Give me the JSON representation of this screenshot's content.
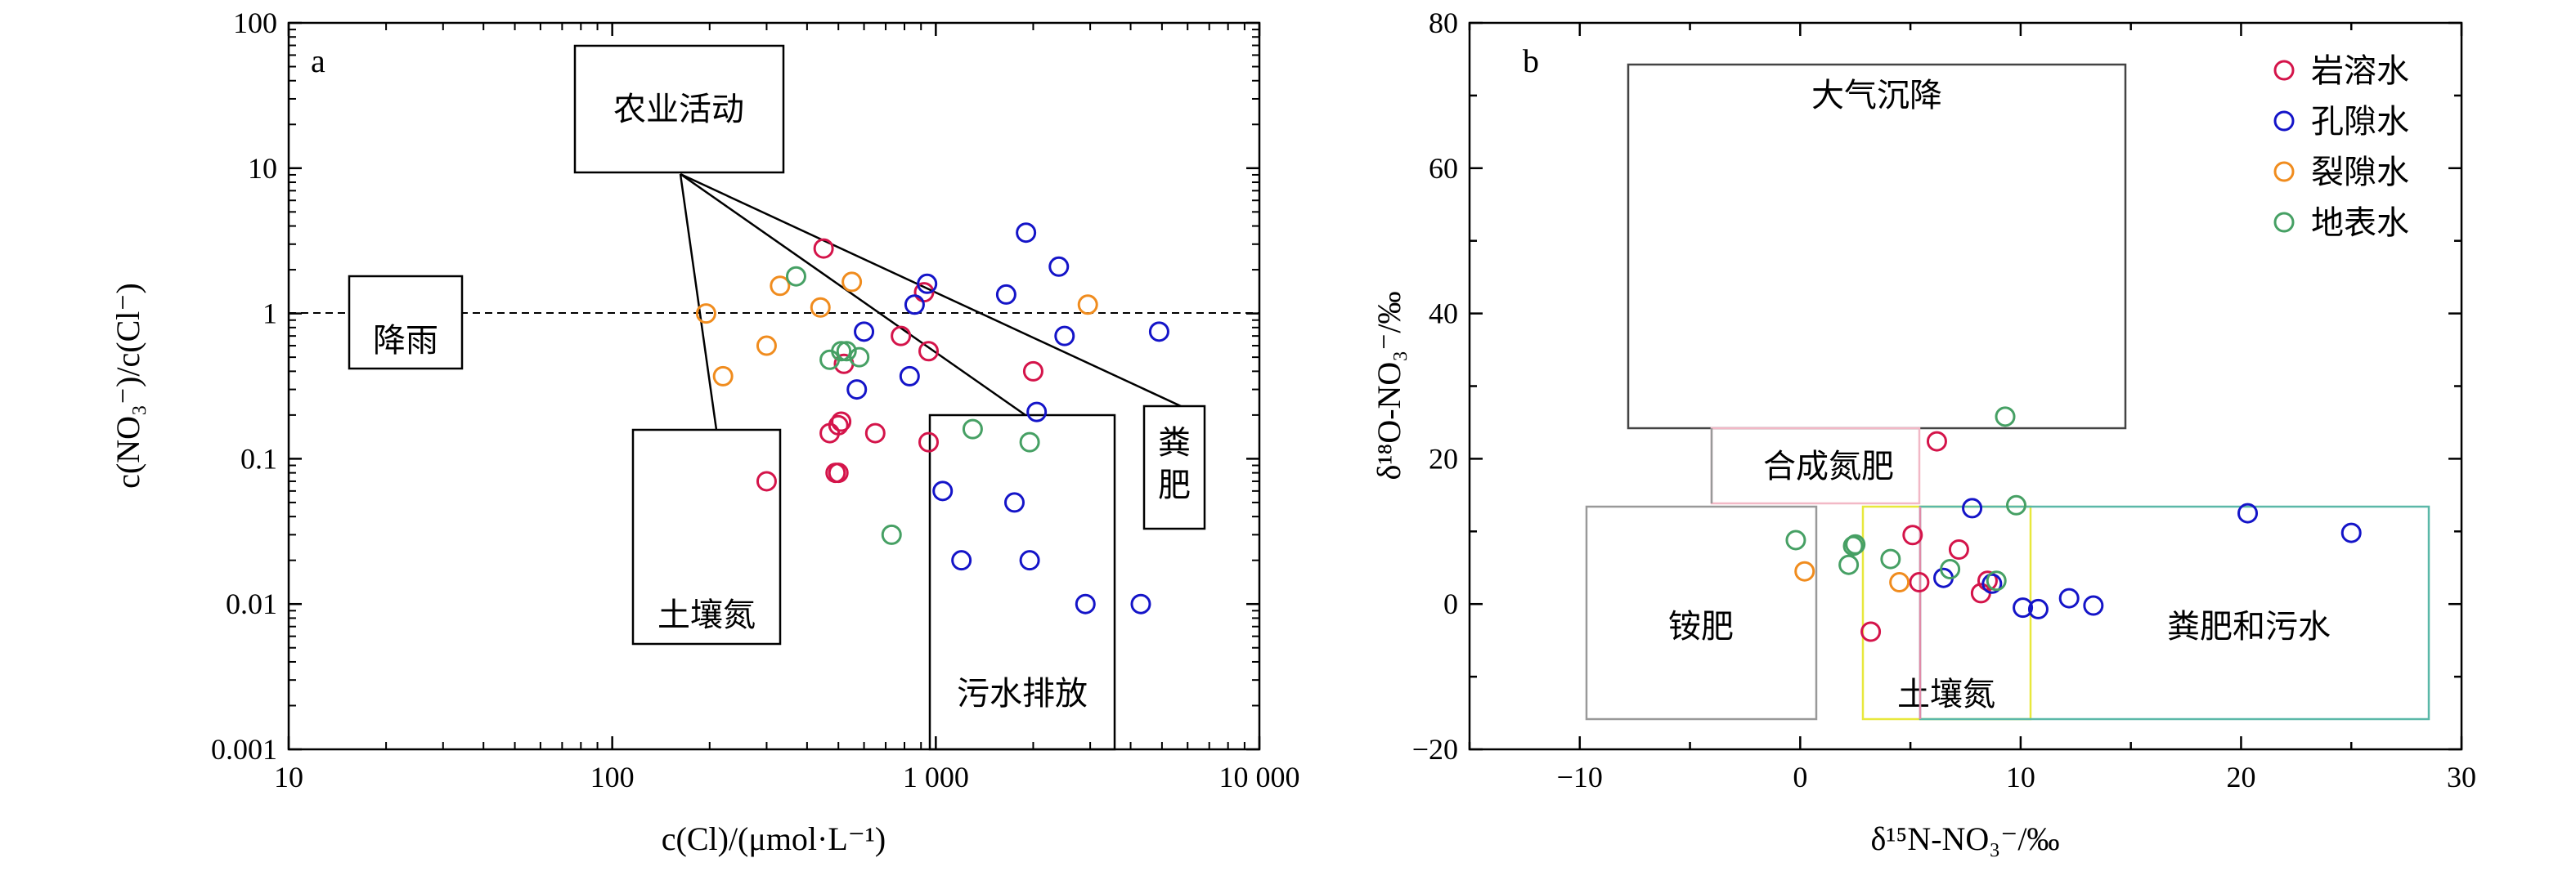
{
  "chart_data": [
    {
      "panel_label": "a",
      "type": "scatter",
      "x_scale": "log",
      "y_scale": "log",
      "xlim": [
        10,
        10000
      ],
      "ylim": [
        0.001,
        100
      ],
      "x_ticks": [
        "10",
        "100",
        "1 000",
        "10 000"
      ],
      "y_ticks": [
        "100",
        "10",
        "1",
        "0.1",
        "0.01",
        "0.001"
      ],
      "xlabel": "c(Cl)/(μmol·L⁻¹)",
      "ylabel": "c(NO₃⁻)/c(Cl⁻)",
      "reference_line_y": 1,
      "boxes": [
        "农业活动",
        "降雨",
        "土壤氮",
        "污水排放",
        "粪肥"
      ],
      "series": [
        {
          "color": "#d4144a",
          "points": [
            [
              300,
              0.07
            ],
            [
              450,
              2.8
            ],
            [
              470,
              0.15
            ],
            [
              490,
              0.08
            ],
            [
              500,
              0.08
            ],
            [
              500,
              0.17
            ],
            [
              510,
              0.18
            ],
            [
              520,
              0.45
            ],
            [
              650,
              0.15
            ],
            [
              780,
              0.7
            ],
            [
              920,
              1.4
            ],
            [
              950,
              0.55
            ],
            [
              950,
              0.13
            ],
            [
              2000,
              0.4
            ]
          ]
        },
        {
          "color": "#1414c8",
          "points": [
            [
              570,
              0.3
            ],
            [
              600,
              0.75
            ],
            [
              830,
              0.37
            ],
            [
              860,
              1.15
            ],
            [
              940,
              1.6
            ],
            [
              1050,
              0.06
            ],
            [
              1200,
              0.02
            ],
            [
              1650,
              1.35
            ],
            [
              1750,
              0.05
            ],
            [
              1900,
              3.6
            ],
            [
              1950,
              0.02
            ],
            [
              2050,
              0.21
            ],
            [
              2400,
              2.1
            ],
            [
              2500,
              0.7
            ],
            [
              2900,
              0.01
            ],
            [
              4300,
              0.01
            ],
            [
              4900,
              0.75
            ]
          ]
        },
        {
          "color": "#f08c1e",
          "points": [
            [
              195,
              1.0
            ],
            [
              220,
              0.37
            ],
            [
              300,
              0.6
            ],
            [
              330,
              1.55
            ],
            [
              440,
              1.1
            ],
            [
              550,
              1.65
            ],
            [
              2950,
              1.15
            ]
          ]
        },
        {
          "color": "#46a064",
          "points": [
            [
              370,
              1.8
            ],
            [
              470,
              0.48
            ],
            [
              510,
              0.55
            ],
            [
              530,
              0.55
            ],
            [
              580,
              0.5
            ],
            [
              730,
              0.03
            ],
            [
              1300,
              0.16
            ],
            [
              1950,
              0.13
            ]
          ]
        }
      ]
    },
    {
      "panel_label": "b",
      "type": "scatter",
      "xlim": [
        -15,
        30
      ],
      "ylim": [
        -20,
        80
      ],
      "x_ticks": [
        "−10",
        "0",
        "10",
        "20",
        "30"
      ],
      "y_ticks": [
        "80",
        "60",
        "40",
        "20",
        "0",
        "−20"
      ],
      "xlabel": "δ¹⁵N-NO₃⁻/‰",
      "ylabel": "δ¹⁸O-NO₃⁻/‰",
      "boxes": [
        "大气沉降",
        "合成氮肥",
        "铵肥",
        "土壤氮",
        "粪肥和污水"
      ],
      "legend": [
        "岩溶水",
        "孔隙水",
        "裂隙水",
        "地表水"
      ],
      "legend_position": "top-right",
      "series": [
        {
          "name": "岩溶水",
          "color": "#d4144a",
          "points": [
            [
              6.2,
              22.4
            ],
            [
              5.1,
              9.5
            ],
            [
              3.2,
              -3.8
            ],
            [
              7.2,
              7.5
            ],
            [
              8.2,
              1.5
            ],
            [
              8.5,
              3.2
            ],
            [
              5.4,
              3.0
            ]
          ]
        },
        {
          "name": "孔隙水",
          "color": "#1414c8",
          "points": [
            [
              7.8,
              13.2
            ],
            [
              6.5,
              3.6
            ],
            [
              8.7,
              2.8
            ],
            [
              10.1,
              -0.5
            ],
            [
              10.8,
              -0.7
            ],
            [
              12.2,
              0.8
            ],
            [
              13.3,
              -0.2
            ],
            [
              20.3,
              12.5
            ],
            [
              25.0,
              9.8
            ]
          ]
        },
        {
          "name": "裂隙水",
          "color": "#f08c1e",
          "points": [
            [
              0.2,
              4.5
            ],
            [
              4.5,
              3.0
            ]
          ]
        },
        {
          "name": "地表水",
          "color": "#46a064",
          "points": [
            [
              -0.2,
              8.8
            ],
            [
              2.4,
              8.0
            ],
            [
              2.5,
              8.2
            ],
            [
              2.2,
              5.4
            ],
            [
              4.1,
              6.2
            ],
            [
              6.8,
              4.8
            ],
            [
              9.8,
              13.6
            ],
            [
              9.3,
              25.8
            ],
            [
              8.9,
              3.2
            ]
          ]
        }
      ]
    }
  ]
}
